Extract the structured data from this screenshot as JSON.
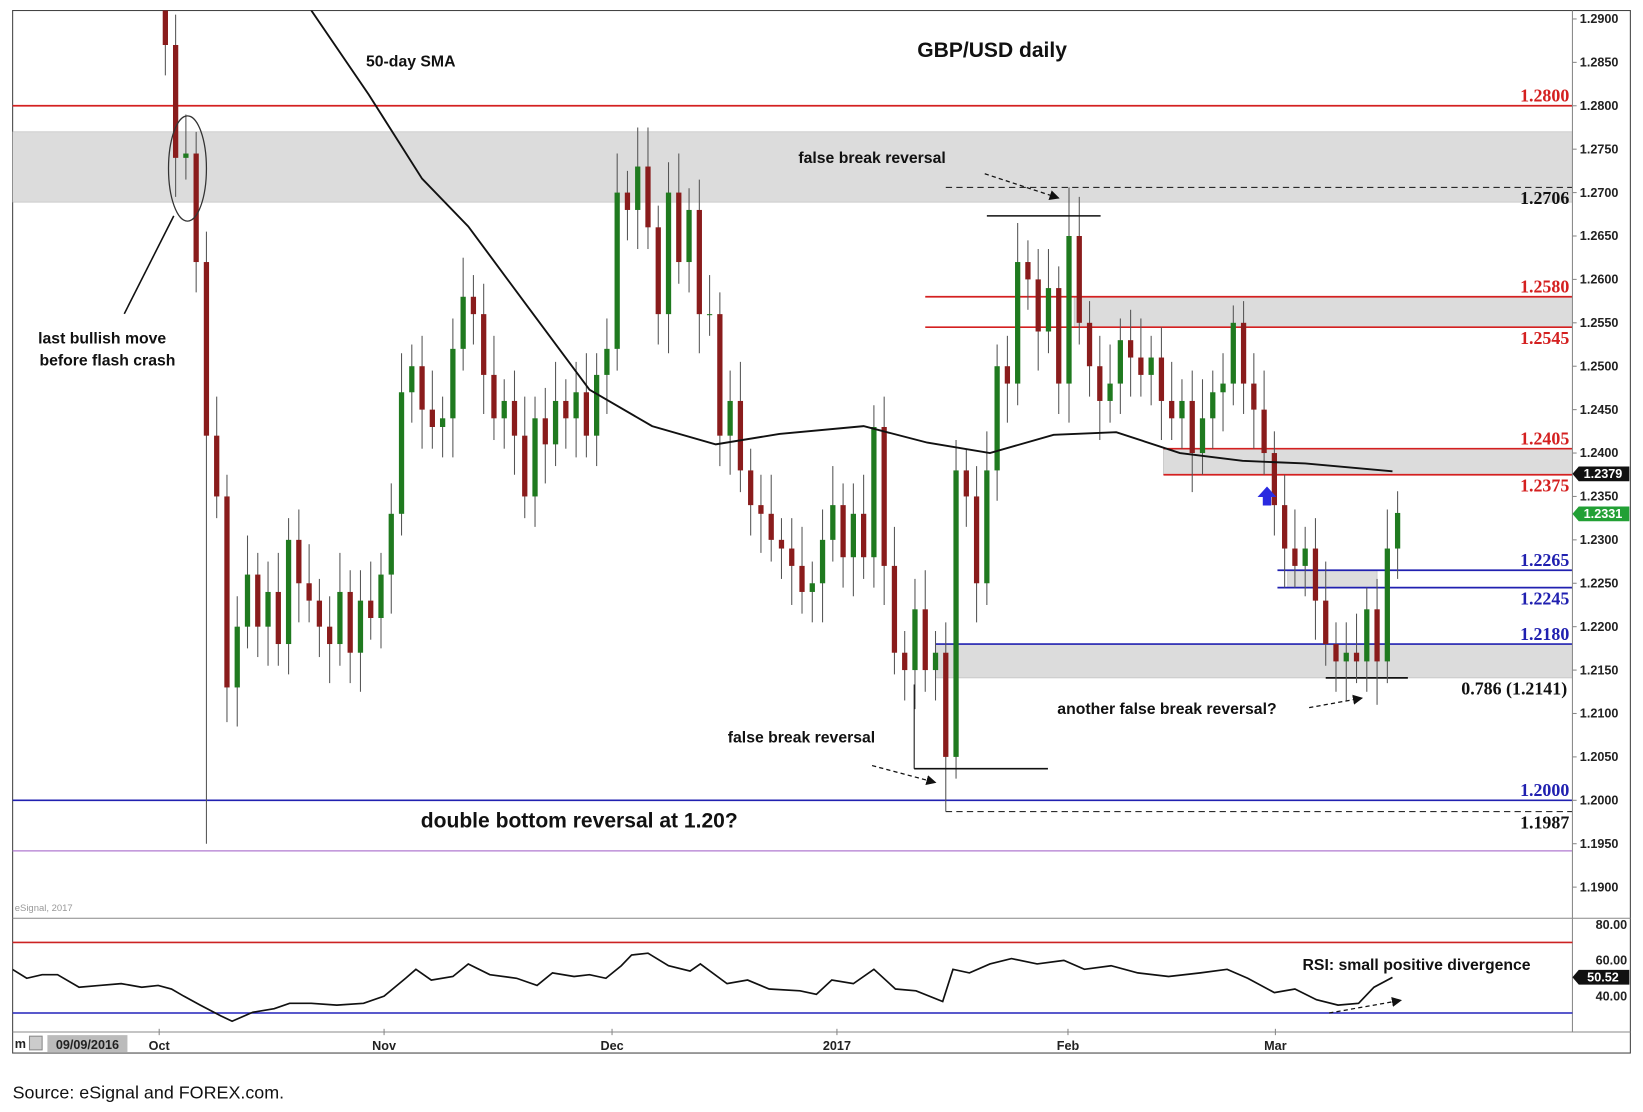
{
  "chart_data": {
    "type": "candlestick",
    "title": "GBP/USD daily",
    "source": "Source: eSignal and FOREX.com.",
    "watermark": "eSignal, 2017",
    "start_date_badge": "09/09/2016",
    "start_badge_prefix": "m",
    "ylim": [
      1.1865,
      1.2915
    ],
    "y_ticks": [
      "1.2900",
      "1.2850",
      "1.2800",
      "1.2750",
      "1.2700",
      "1.2650",
      "1.2600",
      "1.2550",
      "1.2500",
      "1.2450",
      "1.2400",
      "1.2350",
      "1.2300",
      "1.2250",
      "1.2200",
      "1.2150",
      "1.2100",
      "1.2050",
      "1.2000",
      "1.1950",
      "1.1900"
    ],
    "x_labels": [
      {
        "label": "Oct",
        "bar": -0.6
      },
      {
        "label": "Nov",
        "bar": 21.3
      },
      {
        "label": "Dec",
        "bar": 43.5
      },
      {
        "label": "2017",
        "bar": 65.4
      },
      {
        "label": "Feb",
        "bar": 87.9
      },
      {
        "label": "Mar",
        "bar": 108.1
      }
    ],
    "first_open": 1.295,
    "closes": [
      1.287,
      1.274,
      1.2745,
      1.262,
      1.242,
      1.235,
      1.213,
      1.22,
      1.226,
      1.22,
      1.224,
      1.218,
      1.23,
      1.225,
      1.223,
      1.22,
      1.218,
      1.224,
      1.217,
      1.223,
      1.221,
      1.226,
      1.233,
      1.247,
      1.25,
      1.245,
      1.243,
      1.244,
      1.252,
      1.258,
      1.256,
      1.249,
      1.244,
      1.246,
      1.242,
      1.235,
      1.244,
      1.241,
      1.246,
      1.244,
      1.247,
      1.242,
      1.249,
      1.252,
      1.27,
      1.268,
      1.273,
      1.266,
      1.256,
      1.27,
      1.262,
      1.268,
      1.256,
      1.256,
      1.242,
      1.246,
      1.238,
      1.234,
      1.233,
      1.23,
      1.229,
      1.227,
      1.224,
      1.225,
      1.23,
      1.234,
      1.228,
      1.233,
      1.228,
      1.243,
      1.227,
      1.217,
      1.215,
      1.222,
      1.215,
      1.217,
      1.205,
      1.238,
      1.235,
      1.225,
      1.238,
      1.25,
      1.248,
      1.262,
      1.26,
      1.254,
      1.259,
      1.248,
      1.265,
      1.255,
      1.25,
      1.246,
      1.248,
      1.253,
      1.251,
      1.249,
      1.251,
      1.246,
      1.244,
      1.246,
      1.24,
      1.244,
      1.247,
      1.248,
      1.255,
      1.248,
      1.245,
      1.24,
      1.234,
      1.229,
      1.227,
      1.229,
      1.223,
      1.218,
      1.216,
      1.217,
      1.216,
      1.222,
      1.216,
      1.229,
      1.2331
    ],
    "high_overrides": {
      "0": 1.3,
      "46": 1.2775,
      "77": 1.2415,
      "88": 1.2706,
      "104": 1.257
    },
    "low_overrides": {
      "4": 1.195,
      "6": 1.209,
      "76": 1.1987,
      "118": 1.211
    },
    "sma": {
      "name": "50-day SMA",
      "points": [
        [
          14.2,
          1.291
        ],
        [
          19.8,
          1.2813
        ],
        [
          25,
          1.2716
        ],
        [
          29.5,
          1.2661
        ],
        [
          35.2,
          1.257
        ],
        [
          41.3,
          1.2473
        ],
        [
          47.4,
          1.2431
        ],
        [
          53.6,
          1.241
        ],
        [
          59.8,
          1.2422
        ],
        [
          68,
          1.2431
        ],
        [
          74.2,
          1.2412
        ],
        [
          80.3,
          1.24
        ],
        [
          86.5,
          1.2421
        ],
        [
          92.6,
          1.2424
        ],
        [
          98.8,
          1.24
        ],
        [
          104.9,
          1.2391
        ],
        [
          111,
          1.2388
        ],
        [
          119.5,
          1.2379
        ]
      ],
      "last_value": "1.2379"
    },
    "last_price": "1.2331",
    "levels": [
      {
        "label": "1.2800",
        "price": 1.28,
        "color": "#d42020",
        "pos": "above",
        "from_bar": -15
      },
      {
        "label": "1.2706",
        "price": 1.2706,
        "color": "#111111",
        "pos": "below",
        "from_bar": 76,
        "dashed": true
      },
      {
        "label": "1.2580",
        "price": 1.258,
        "color": "#d42020",
        "pos": "above",
        "from_bar": 74
      },
      {
        "label": "1.2545",
        "price": 1.2545,
        "color": "#d42020",
        "pos": "below",
        "from_bar": 74
      },
      {
        "label": "1.2405",
        "price": 1.2405,
        "color": "#d42020",
        "pos": "above",
        "from_bar": 97.2
      },
      {
        "label": "1.2375",
        "price": 1.2375,
        "color": "#d42020",
        "pos": "below",
        "from_bar": 97.2
      },
      {
        "label": "1.2265",
        "price": 1.2265,
        "color": "#2020b0",
        "pos": "above",
        "from_bar": 108.3
      },
      {
        "label": "1.2245",
        "price": 1.2245,
        "color": "#2020b0",
        "pos": "below",
        "from_bar": 108.3
      },
      {
        "label": "1.2180",
        "price": 1.218,
        "color": "#2020b0",
        "pos": "above",
        "from_bar": 75
      },
      {
        "label": "0.786 (1.2141)",
        "price": 1.2141,
        "color": "#111111",
        "pos": "below",
        "from_bar": 113,
        "to_bar": 121,
        "label_right": true
      },
      {
        "label": "1.2000",
        "price": 1.2,
        "color": "#2020b0",
        "pos": "above",
        "from_bar": -15
      },
      {
        "label": "1.1987",
        "price": 1.1987,
        "color": "#111111",
        "pos": "below",
        "from_bar": 76,
        "dashed": true
      }
    ],
    "zones": [
      {
        "from_bar": -15,
        "lo": 1.2689,
        "hi": 1.277
      },
      {
        "from_bar": 88.5,
        "lo": 1.2545,
        "hi": 1.258
      },
      {
        "from_bar": 97.2,
        "lo": 1.2375,
        "hi": 1.2405
      },
      {
        "from_bar": 109.3,
        "to_bar": 118,
        "lo": 1.2245,
        "hi": 1.2265
      },
      {
        "from_bar": 75,
        "lo": 1.2141,
        "hi": 1.218
      }
    ],
    "annotations": {
      "sma_label": "50-day SMA",
      "false_break_top": "false break reversal",
      "flash_crash_1": "last bullish move",
      "flash_crash_2": "before flash crash",
      "another_false_break": "another false break reversal?",
      "false_break_bottom": "false break reversal",
      "double_bottom": "double bottom reversal at 1.20?",
      "rsi_divergence": "RSI: small positive divergence"
    },
    "rsi": {
      "overbought": 70,
      "oversold": 30,
      "ticks": [
        "80.00",
        "60.00",
        "40.00"
      ],
      "last_value": "50.52",
      "points": [
        [
          -14.9,
          55
        ],
        [
          -13.5,
          50
        ],
        [
          -12,
          52
        ],
        [
          -10.5,
          52
        ],
        [
          -8.4,
          45
        ],
        [
          -6.4,
          46
        ],
        [
          -4.3,
          47
        ],
        [
          -2.3,
          45
        ],
        [
          -0.7,
          46
        ],
        [
          0.6,
          44
        ],
        [
          1.8,
          40
        ],
        [
          3.4,
          35
        ],
        [
          5.4,
          29
        ],
        [
          6.5,
          26
        ],
        [
          8.5,
          31
        ],
        [
          10.6,
          33
        ],
        [
          12.1,
          36
        ],
        [
          14.2,
          36
        ],
        [
          16.7,
          35
        ],
        [
          19.3,
          36
        ],
        [
          21.3,
          40
        ],
        [
          23.4,
          50
        ],
        [
          24.4,
          55
        ],
        [
          25.9,
          49
        ],
        [
          28,
          51
        ],
        [
          29.5,
          58
        ],
        [
          31.6,
          52
        ],
        [
          34.2,
          50
        ],
        [
          36.2,
          46
        ],
        [
          37.7,
          53
        ],
        [
          39.8,
          51
        ],
        [
          41.3,
          52
        ],
        [
          42.9,
          50
        ],
        [
          44.4,
          57
        ],
        [
          45.4,
          63
        ],
        [
          47,
          64
        ],
        [
          49,
          57
        ],
        [
          51.1,
          54
        ],
        [
          52.1,
          58
        ],
        [
          54.7,
          47
        ],
        [
          56.7,
          49
        ],
        [
          58.8,
          44
        ],
        [
          61.8,
          43
        ],
        [
          63.4,
          41
        ],
        [
          64.9,
          49
        ],
        [
          67,
          47
        ],
        [
          69,
          55
        ],
        [
          71.1,
          44
        ],
        [
          73.1,
          43
        ],
        [
          75.7,
          37
        ],
        [
          76.7,
          55
        ],
        [
          78.3,
          53
        ],
        [
          80.3,
          58
        ],
        [
          82.4,
          61
        ],
        [
          84.9,
          58
        ],
        [
          87.5,
          60
        ],
        [
          89.5,
          55
        ],
        [
          92.1,
          57
        ],
        [
          94.7,
          53
        ],
        [
          97.7,
          51
        ],
        [
          100.8,
          53
        ],
        [
          103.4,
          55
        ],
        [
          105.4,
          50
        ],
        [
          108,
          42
        ],
        [
          110,
          44
        ],
        [
          112.1,
          38
        ],
        [
          114.2,
          35
        ],
        [
          116.2,
          36
        ],
        [
          117.7,
          45
        ],
        [
          119.5,
          50.52
        ]
      ]
    },
    "colors": {
      "bull": "#1f7a1f",
      "bear": "#8a1c1c",
      "zone": "#dcdcdc",
      "sma": "#111111",
      "rsi": "#111111",
      "ob": "#cc2222",
      "os": "#2222bb",
      "last_tag": "#22a035",
      "purple": "#b07ad0"
    }
  }
}
